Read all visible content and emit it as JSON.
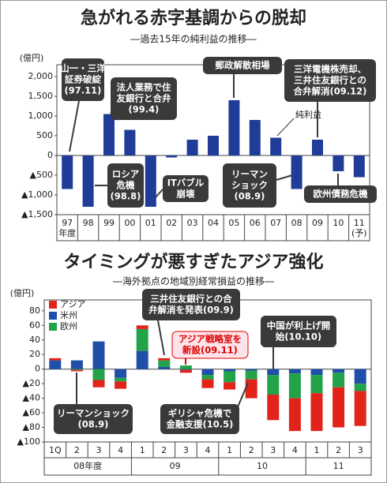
{
  "chart_data": [
    {
      "type": "bar",
      "title": "急がれる赤字基調からの脱却",
      "subtitle": "―過去15年の純利益の推移―",
      "y_unit": "(億円)",
      "categories": [
        "97",
        "98",
        "99",
        "00",
        "01",
        "02",
        "03",
        "04",
        "05",
        "06",
        "07",
        "08",
        "09",
        "10",
        "11"
      ],
      "x_unit": "年度",
      "forecast_label": "(予)",
      "series": [
        {
          "name": "純利益",
          "color": "#1f3c99",
          "values": [
            -850,
            -1300,
            1050,
            650,
            -1300,
            -50,
            400,
            500,
            1400,
            900,
            450,
            -850,
            400,
            -400,
            -550
          ]
        }
      ],
      "ylim": [
        -1500,
        2300
      ],
      "yticks": [
        {
          "value": 2000,
          "label": "2,000"
        },
        {
          "value": 1500,
          "label": "1,500"
        },
        {
          "value": 1000,
          "label": "1,000"
        },
        500,
        0,
        {
          "value": -500,
          "label": "▲500"
        },
        {
          "value": -1000,
          "label": "▲1,000"
        },
        {
          "value": -1500,
          "label": "▲1,500"
        }
      ],
      "annotations": [
        {
          "lines": [
            "山一・三洋",
            "証券破綻",
            "(97.11)"
          ]
        },
        {
          "lines": [
            "法人業務で住",
            "友銀行と合弁",
            "(99.4)"
          ]
        },
        {
          "lines": [
            "郵政解散相場"
          ]
        },
        {
          "lines": [
            "三洋電機株売却、",
            "三井住友銀行との",
            "合弁解消(09.12)"
          ]
        },
        {
          "lines": [
            "ロシア",
            "危機",
            "(98.8)"
          ]
        },
        {
          "lines": [
            "ITバブル",
            "崩壊"
          ]
        },
        {
          "lines": [
            "リーマン",
            "ショック",
            "(08.9)"
          ]
        },
        {
          "lines": [
            "欧州債務危機"
          ]
        }
      ]
    },
    {
      "type": "stacked_bar",
      "title": "タイミングが悪すぎたアジア強化",
      "subtitle": "―海外拠点の地域別経常損益の推移―",
      "y_unit": "(億円)",
      "categories": [
        "1Q",
        "2",
        "3",
        "4",
        "1",
        "2",
        "3",
        "4",
        "1",
        "2",
        "3",
        "4",
        "1",
        "2",
        "3"
      ],
      "x_groups": [
        "08年度",
        "09",
        "10",
        "11"
      ],
      "legend": "upper left",
      "series": [
        {
          "name": "アジア",
          "color": "#e2231a",
          "values": [
            3,
            -2,
            -10,
            -10,
            5,
            3,
            -4,
            -12,
            -10,
            -26,
            -35,
            -45,
            -52,
            -55,
            -48
          ]
        },
        {
          "name": "米州",
          "color": "#1f4fa8",
          "values": [
            12,
            12,
            38,
            -12,
            25,
            3,
            -1,
            -8,
            -3,
            -2,
            -8,
            -6,
            -8,
            -5,
            -20
          ]
        },
        {
          "name": "欧州",
          "color": "#22a34a",
          "values": [
            0,
            -1,
            -15,
            -5,
            30,
            9,
            5,
            -6,
            -15,
            -12,
            -27,
            -34,
            -25,
            -20,
            -10
          ]
        }
      ],
      "ylim": [
        -100,
        95
      ],
      "yticks": [
        80,
        60,
        40,
        20,
        0,
        {
          "value": -20,
          "label": "▲20"
        },
        {
          "value": -40,
          "label": "▲40"
        },
        {
          "value": -60,
          "label": "▲60"
        },
        {
          "value": -80,
          "label": "▲80"
        },
        {
          "value": -100,
          "label": "▲100"
        }
      ],
      "annotations": [
        {
          "lines": [
            "三井住友銀行との合",
            "弁解消を発表(09.9)"
          ]
        },
        {
          "lines": [
            "アジア戦略室を",
            "新設(09.11)"
          ]
        },
        {
          "lines": [
            "中国が利上げ開",
            "始(10.10)"
          ]
        },
        {
          "lines": [
            "リーマンショック",
            "(08.9)"
          ]
        },
        {
          "lines": [
            "ギリシャ危機で",
            "金融支援(10.5)"
          ]
        }
      ]
    }
  ]
}
